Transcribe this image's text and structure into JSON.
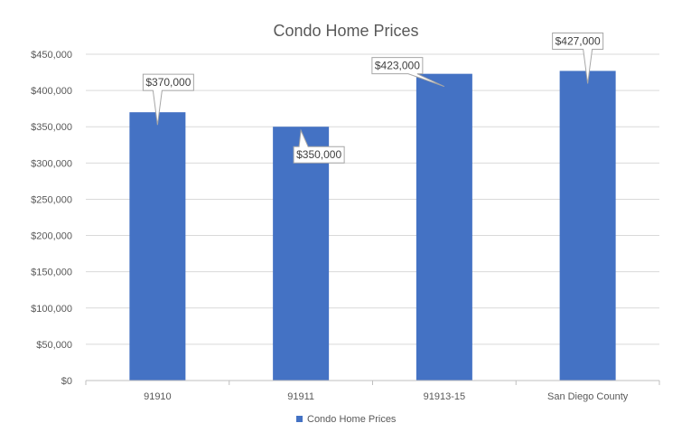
{
  "chart_data": {
    "type": "bar",
    "title": "Condo Home Prices",
    "categories": [
      "91910",
      "91911",
      "91913-15",
      "San Diego County"
    ],
    "series": [
      {
        "name": "Condo Home Prices",
        "values": [
          370000,
          350000,
          423000,
          427000
        ],
        "data_labels": [
          "$370,000",
          "$350,000",
          "$423,000",
          "$427,000"
        ]
      }
    ],
    "xlabel": "",
    "ylabel": "",
    "ylim": [
      0,
      450000
    ],
    "y_ticks": [
      0,
      50000,
      100000,
      150000,
      200000,
      250000,
      300000,
      350000,
      400000,
      450000
    ],
    "y_tick_labels": [
      "$0",
      "$50,000",
      "$100,000",
      "$150,000",
      "$200,000",
      "$250,000",
      "$300,000",
      "$350,000",
      "$400,000",
      "$450,000"
    ],
    "grid": true,
    "legend_position": "bottom",
    "colors": {
      "bar": "#4472C4",
      "gridline": "#d9d9d9",
      "axis": "#bfbfbf",
      "text": "#595959",
      "callout_border": "#a6a6a6"
    }
  }
}
